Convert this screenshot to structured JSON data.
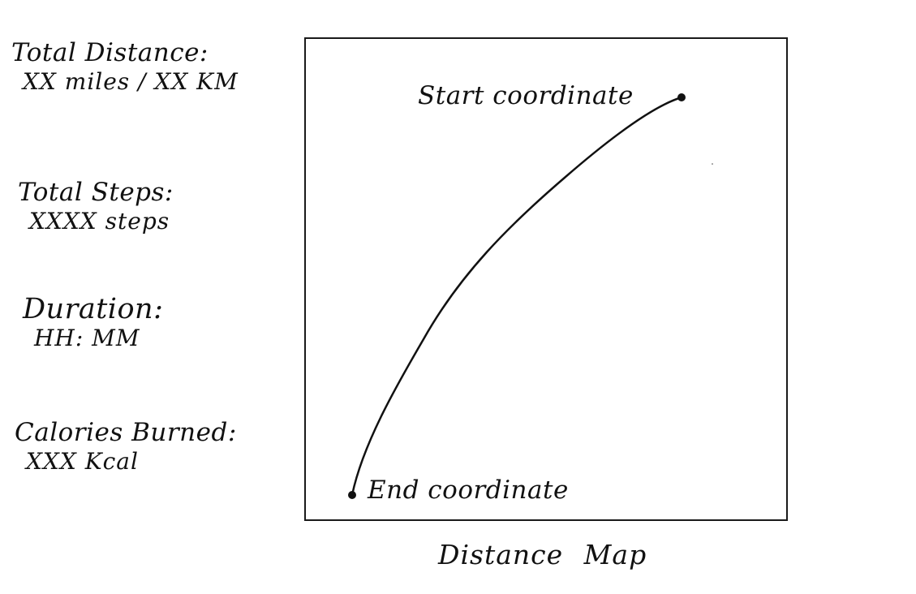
{
  "stats": {
    "total_distance": {
      "label": "Total Distance:",
      "value": "XX miles / XX KM"
    },
    "total_steps": {
      "label": "Total Steps:",
      "value": "XXXX steps"
    },
    "duration": {
      "label": "Duration:",
      "value": "HH: MM"
    },
    "calories": {
      "label": "Calories Burned:",
      "value": "XXX Kcal"
    }
  },
  "map": {
    "start_label": "Start coordinate",
    "end_label": "End coordinate",
    "caption": "Distance Map"
  },
  "colors": {
    "ink": "#111111",
    "background": "#ffffff"
  }
}
